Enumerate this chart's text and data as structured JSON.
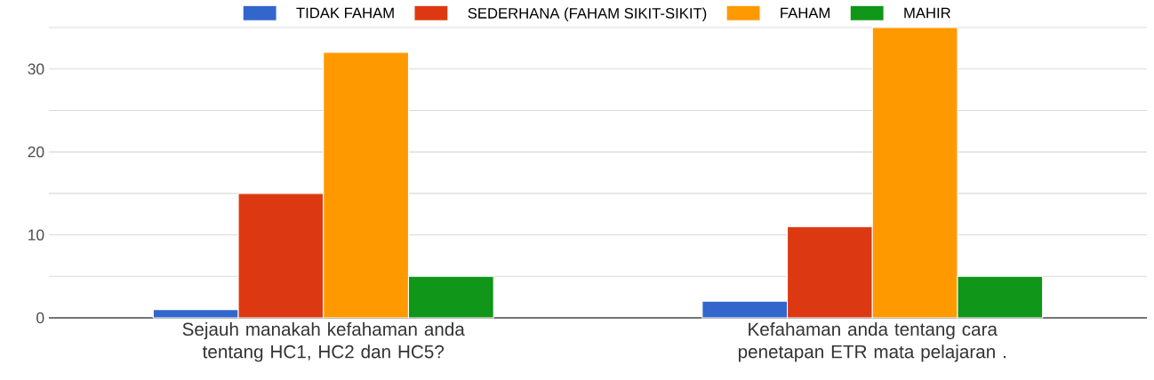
{
  "chart_data": {
    "type": "bar",
    "categories": [
      "Sejauh manakah kefahaman anda tentang HC1, HC2 dan HC5?",
      "Kefahaman anda tentang cara penetapan ETR mata pelajaran ."
    ],
    "series": [
      {
        "name": "TIDAK FAHAM",
        "color": "#3366cc",
        "values": [
          1,
          2
        ]
      },
      {
        "name": "SEDERHANA (FAHAM SIKIT-SIKIT)",
        "color": "#dc3912",
        "values": [
          15,
          11
        ]
      },
      {
        "name": "FAHAM",
        "color": "#ff9900",
        "values": [
          32,
          35
        ]
      },
      {
        "name": "MAHIR",
        "color": "#109618",
        "values": [
          5,
          5
        ]
      }
    ],
    "ylim": [
      0,
      35
    ],
    "yticks": [
      0,
      {
        "value": 5,
        "label": null
      },
      10,
      {
        "value": 15,
        "label": null
      },
      20,
      {
        "value": 25,
        "label": null
      },
      30,
      {
        "value": 35,
        "label": null
      }
    ],
    "grid": "y",
    "legend": "top"
  }
}
